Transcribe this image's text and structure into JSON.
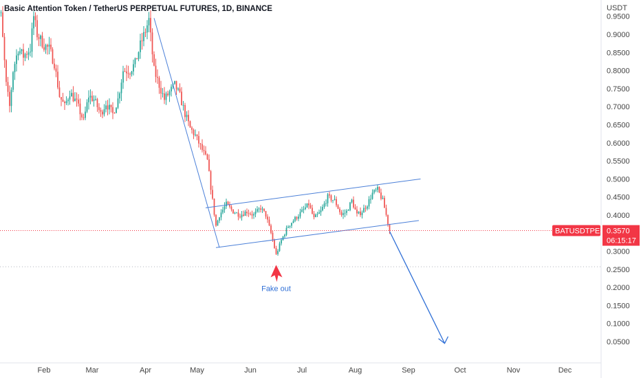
{
  "header": {
    "title": "Basic Attention Token / TetherUS PERPETUAL FUTURES, 1D, BINANCE"
  },
  "colors": {
    "up": "#26a69a",
    "down": "#ef5350",
    "trendline": "#4a7fd8",
    "arrow": "#2f6fd6",
    "fakeout_arrow": "#f23645",
    "badge": "#f23645",
    "price_line": "#f23645"
  },
  "chart_data": {
    "type": "candlestick",
    "y_unit": "USDT",
    "ylim": [
      0.02,
      1.0
    ],
    "y_ticks": [
      "0.9500",
      "0.9000",
      "0.8500",
      "0.8000",
      "0.7500",
      "0.7000",
      "0.6500",
      "0.6000",
      "0.5500",
      "0.5000",
      "0.4500",
      "0.4000",
      "0.3500",
      "0.3000",
      "0.2500",
      "0.2000",
      "0.1500",
      "0.1000",
      "0.0500"
    ],
    "x_ticks": [
      "Feb",
      "Mar",
      "Apr",
      "May",
      "Jun",
      "Jul",
      "Aug",
      "Sep",
      "Oct",
      "Nov",
      "Dec"
    ],
    "last_price": {
      "symbol": "BATUSDTPERP",
      "value": "0.3570",
      "countdown": "06:15:17"
    },
    "anchors": [
      [
        "2022-01-03",
        0.98
      ],
      [
        "2022-01-07",
        0.95
      ],
      [
        "2022-01-10",
        0.76
      ],
      [
        "2022-01-12",
        0.7
      ],
      [
        "2022-01-14",
        0.8
      ],
      [
        "2022-01-17",
        0.86
      ],
      [
        "2022-01-20",
        0.84
      ],
      [
        "2022-01-24",
        0.86
      ],
      [
        "2022-01-26",
        0.95
      ],
      [
        "2022-01-28",
        0.9
      ],
      [
        "2022-02-01",
        0.87
      ],
      [
        "2022-02-04",
        0.86
      ],
      [
        "2022-02-07",
        0.82
      ],
      [
        "2022-02-10",
        0.73
      ],
      [
        "2022-02-13",
        0.7
      ],
      [
        "2022-02-16",
        0.74
      ],
      [
        "2022-02-20",
        0.71
      ],
      [
        "2022-02-24",
        0.66
      ],
      [
        "2022-02-27",
        0.73
      ],
      [
        "2022-03-02",
        0.72
      ],
      [
        "2022-03-06",
        0.68
      ],
      [
        "2022-03-09",
        0.71
      ],
      [
        "2022-03-13",
        0.68
      ],
      [
        "2022-03-16",
        0.72
      ],
      [
        "2022-03-19",
        0.8
      ],
      [
        "2022-03-23",
        0.8
      ],
      [
        "2022-03-26",
        0.82
      ],
      [
        "2022-03-29",
        0.87
      ],
      [
        "2022-04-01",
        0.91
      ],
      [
        "2022-04-03",
        0.94
      ],
      [
        "2022-04-06",
        0.8
      ],
      [
        "2022-04-09",
        0.76
      ],
      [
        "2022-04-12",
        0.72
      ],
      [
        "2022-04-15",
        0.74
      ],
      [
        "2022-04-18",
        0.76
      ],
      [
        "2022-04-21",
        0.73
      ],
      [
        "2022-04-24",
        0.68
      ],
      [
        "2022-04-27",
        0.64
      ],
      [
        "2022-04-30",
        0.62
      ],
      [
        "2022-05-04",
        0.58
      ],
      [
        "2022-05-07",
        0.55
      ],
      [
        "2022-05-10",
        0.44
      ],
      [
        "2022-05-12",
        0.37
      ],
      [
        "2022-05-14",
        0.4
      ],
      [
        "2022-05-18",
        0.43
      ],
      [
        "2022-05-22",
        0.41
      ],
      [
        "2022-05-26",
        0.4
      ],
      [
        "2022-05-30",
        0.41
      ],
      [
        "2022-06-03",
        0.4
      ],
      [
        "2022-06-07",
        0.42
      ],
      [
        "2022-06-10",
        0.4
      ],
      [
        "2022-06-13",
        0.35
      ],
      [
        "2022-06-16",
        0.29
      ],
      [
        "2022-06-19",
        0.33
      ],
      [
        "2022-06-23",
        0.37
      ],
      [
        "2022-06-27",
        0.39
      ],
      [
        "2022-07-01",
        0.41
      ],
      [
        "2022-07-05",
        0.43
      ],
      [
        "2022-07-08",
        0.39
      ],
      [
        "2022-07-12",
        0.41
      ],
      [
        "2022-07-16",
        0.45
      ],
      [
        "2022-07-20",
        0.44
      ],
      [
        "2022-07-24",
        0.4
      ],
      [
        "2022-07-27",
        0.41
      ],
      [
        "2022-07-30",
        0.44
      ],
      [
        "2022-08-02",
        0.4
      ],
      [
        "2022-08-05",
        0.41
      ],
      [
        "2022-08-08",
        0.43
      ],
      [
        "2022-08-11",
        0.46
      ],
      [
        "2022-08-14",
        0.47
      ],
      [
        "2022-08-17",
        0.44
      ],
      [
        "2022-08-19",
        0.4
      ],
      [
        "2022-08-21",
        0.357
      ]
    ],
    "start_date": "2022-01-03",
    "end_date": "2022-08-21",
    "overlays": {
      "falling_line": [
        [
          "2022-04-06",
          0.945
        ],
        [
          "2022-05-14",
          0.31
        ]
      ],
      "channel_upper": [
        [
          "2022-05-06",
          0.42
        ],
        [
          "2022-09-08",
          0.5
        ]
      ],
      "channel_lower": [
        [
          "2022-05-12",
          0.31
        ],
        [
          "2022-09-07",
          0.385
        ]
      ],
      "down_arrow": [
        [
          "2022-08-21",
          0.355
        ],
        [
          "2022-09-22",
          0.045
        ]
      ],
      "fakeout_arrow": [
        [
          "2022-06-16",
          0.215
        ],
        [
          "2022-06-16",
          0.262
        ]
      ],
      "support_dotted_price": 0.257
    },
    "annotations": [
      {
        "text": "Fake out",
        "date": "2022-06-16",
        "price": 0.19
      }
    ]
  }
}
